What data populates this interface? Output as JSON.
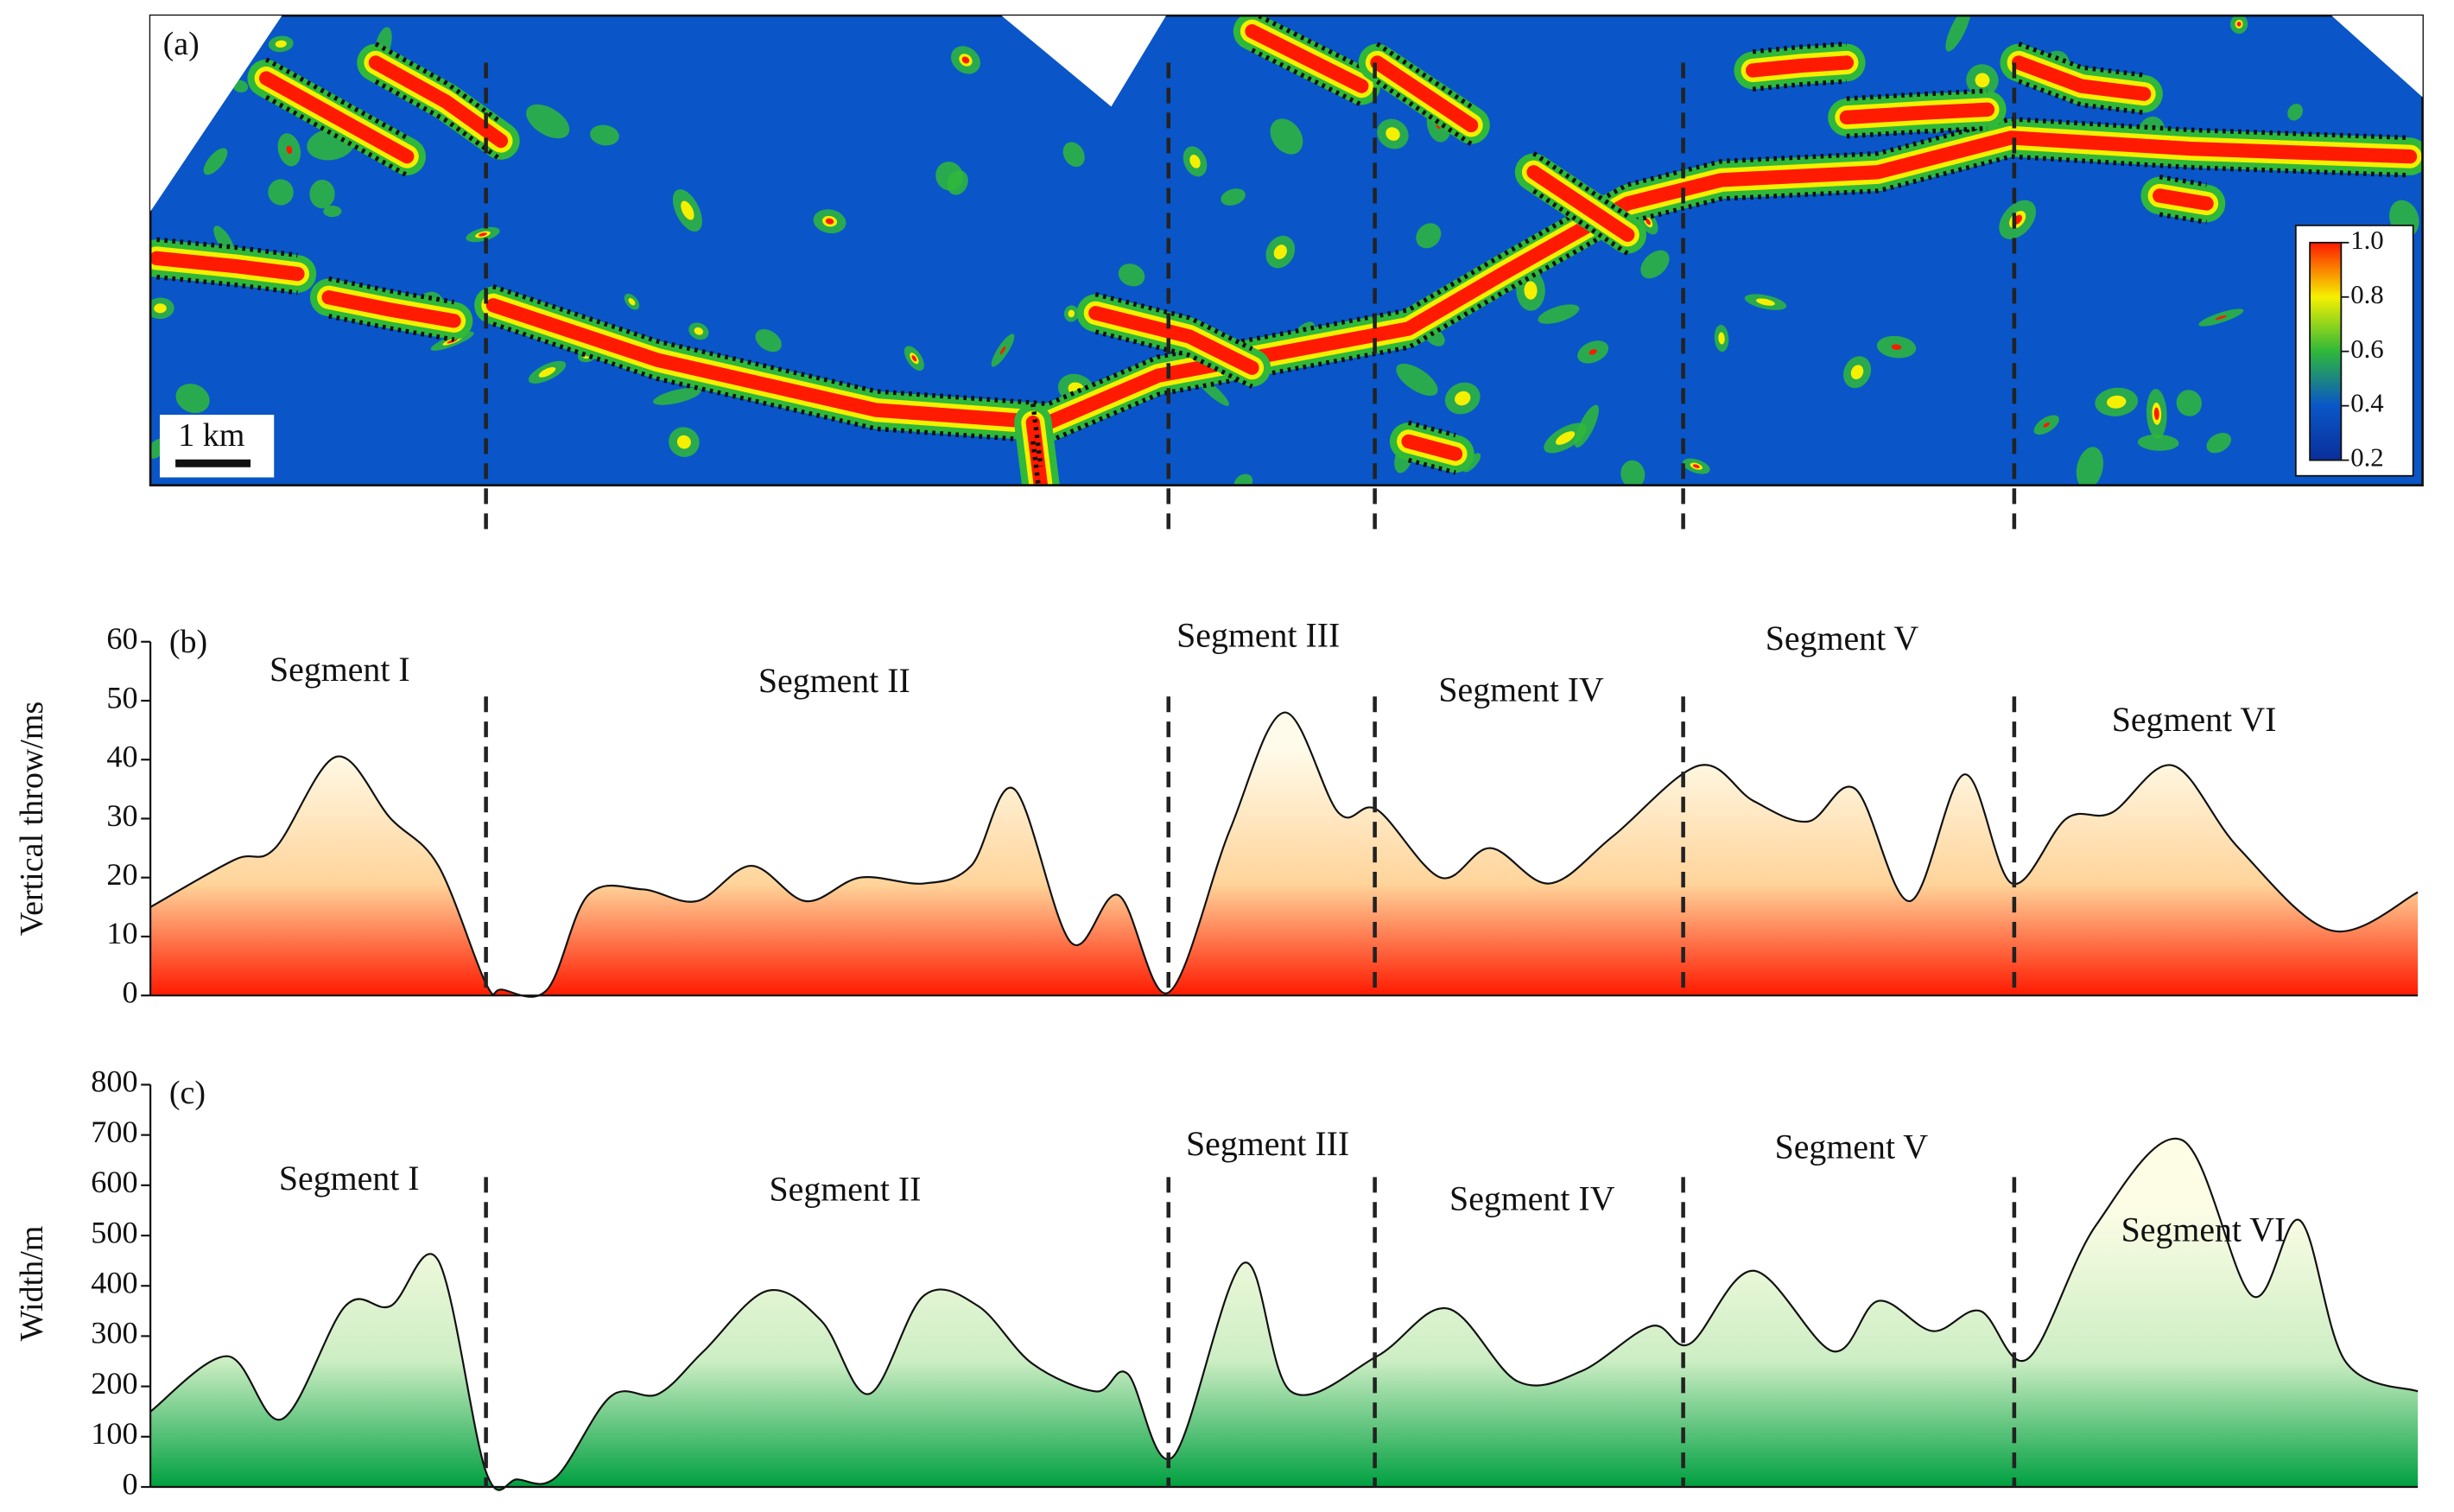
{
  "chart_data": [
    {
      "type": "heatmap",
      "label": "(a)",
      "scale_bar": "1 km",
      "colorbar": {
        "clim": [
          0.2,
          1
        ],
        "ticks": [
          0.2,
          0.4,
          0.6,
          0.8,
          {
            "value": 1,
            "label": "1.0"
          }
        ],
        "colors": [
          "#0a2f9a",
          "#0a56c8",
          "#2fb83a",
          "#f5f000",
          "#ff1a00"
        ]
      }
    },
    {
      "type": "area",
      "label": "(b)",
      "ylabel": "Vertical throw/ms",
      "ylim": [
        0,
        60
      ],
      "yticks": [
        0,
        10,
        20,
        30,
        40,
        50,
        60
      ],
      "xlim": [
        0,
        100
      ],
      "boundaries": [
        14.8,
        44.9,
        54.0,
        67.6,
        82.2
      ],
      "segments": [
        "Segment I",
        "Segment II",
        "Segment III",
        "Segment IV",
        "Segment V",
        "Segment VI"
      ],
      "x": [
        0,
        3.7,
        5.5,
        8.2,
        10.6,
        12.7,
        14.8,
        15.5,
        17.5,
        19.3,
        21.7,
        24.1,
        26.5,
        28.9,
        31.3,
        34.1,
        36.2,
        38.1,
        40.6,
        42.7,
        44.9,
        47.6,
        50.0,
        52.4,
        54.1,
        56.9,
        59.1,
        61.7,
        64.5,
        68.3,
        70.7,
        73.1,
        75.2,
        77.6,
        80.0,
        82.1,
        84.5,
        86.5,
        89.2,
        92.1,
        96.2,
        100
      ],
      "values": [
        15,
        23,
        25,
        40.5,
        30,
        22,
        2,
        1,
        1,
        17,
        18,
        16,
        22,
        16,
        20,
        19,
        22,
        35,
        9,
        17,
        0.5,
        28,
        48,
        31,
        31.5,
        20,
        25,
        19,
        27,
        39,
        33,
        29.5,
        35,
        16,
        37.5,
        19,
        30,
        31,
        39,
        25,
        11,
        17.5
      ],
      "line_color": "#111111",
      "fill_colors": [
        "#fffbea",
        "#ffd49a",
        "#ff1a00"
      ]
    },
    {
      "type": "area",
      "label": "(c)",
      "ylabel": "Width/m",
      "ylim": [
        0,
        800
      ],
      "yticks": [
        0,
        100,
        200,
        300,
        400,
        500,
        600,
        700,
        800
      ],
      "xlim": [
        0,
        100
      ],
      "boundaries": [
        14.8,
        44.9,
        54.0,
        67.6,
        82.2
      ],
      "segments": [
        "Segment I",
        "Segment II",
        "Segment III",
        "Segment IV",
        "Segment V",
        "Segment VI"
      ],
      "x": [
        0,
        3.4,
        5.8,
        8.6,
        10.6,
        12.7,
        14.8,
        16.2,
        17.9,
        20.3,
        22.4,
        24.4,
        27.2,
        29.6,
        31.7,
        34.1,
        36.5,
        38.9,
        41.7,
        43.1,
        45.1,
        48.2,
        50.3,
        54.1,
        57.2,
        60.3,
        63.1,
        66.2,
        67.9,
        70.7,
        74.2,
        76.2,
        78.6,
        80.7,
        82.8,
        85.8,
        89.6,
        92.7,
        94.8,
        96.8,
        100
      ],
      "values": [
        150,
        260,
        135,
        360,
        360,
        450,
        30,
        15,
        20,
        180,
        185,
        270,
        390,
        330,
        185,
        380,
        360,
        245,
        190,
        225,
        60,
        445,
        190,
        260,
        355,
        210,
        230,
        320,
        285,
        430,
        270,
        370,
        310,
        350,
        255,
        520,
        690,
        380,
        530,
        250,
        190
      ],
      "line_color": "#111111",
      "fill_colors": [
        "#fdfde6",
        "#cdeec4",
        "#00a040"
      ]
    }
  ]
}
